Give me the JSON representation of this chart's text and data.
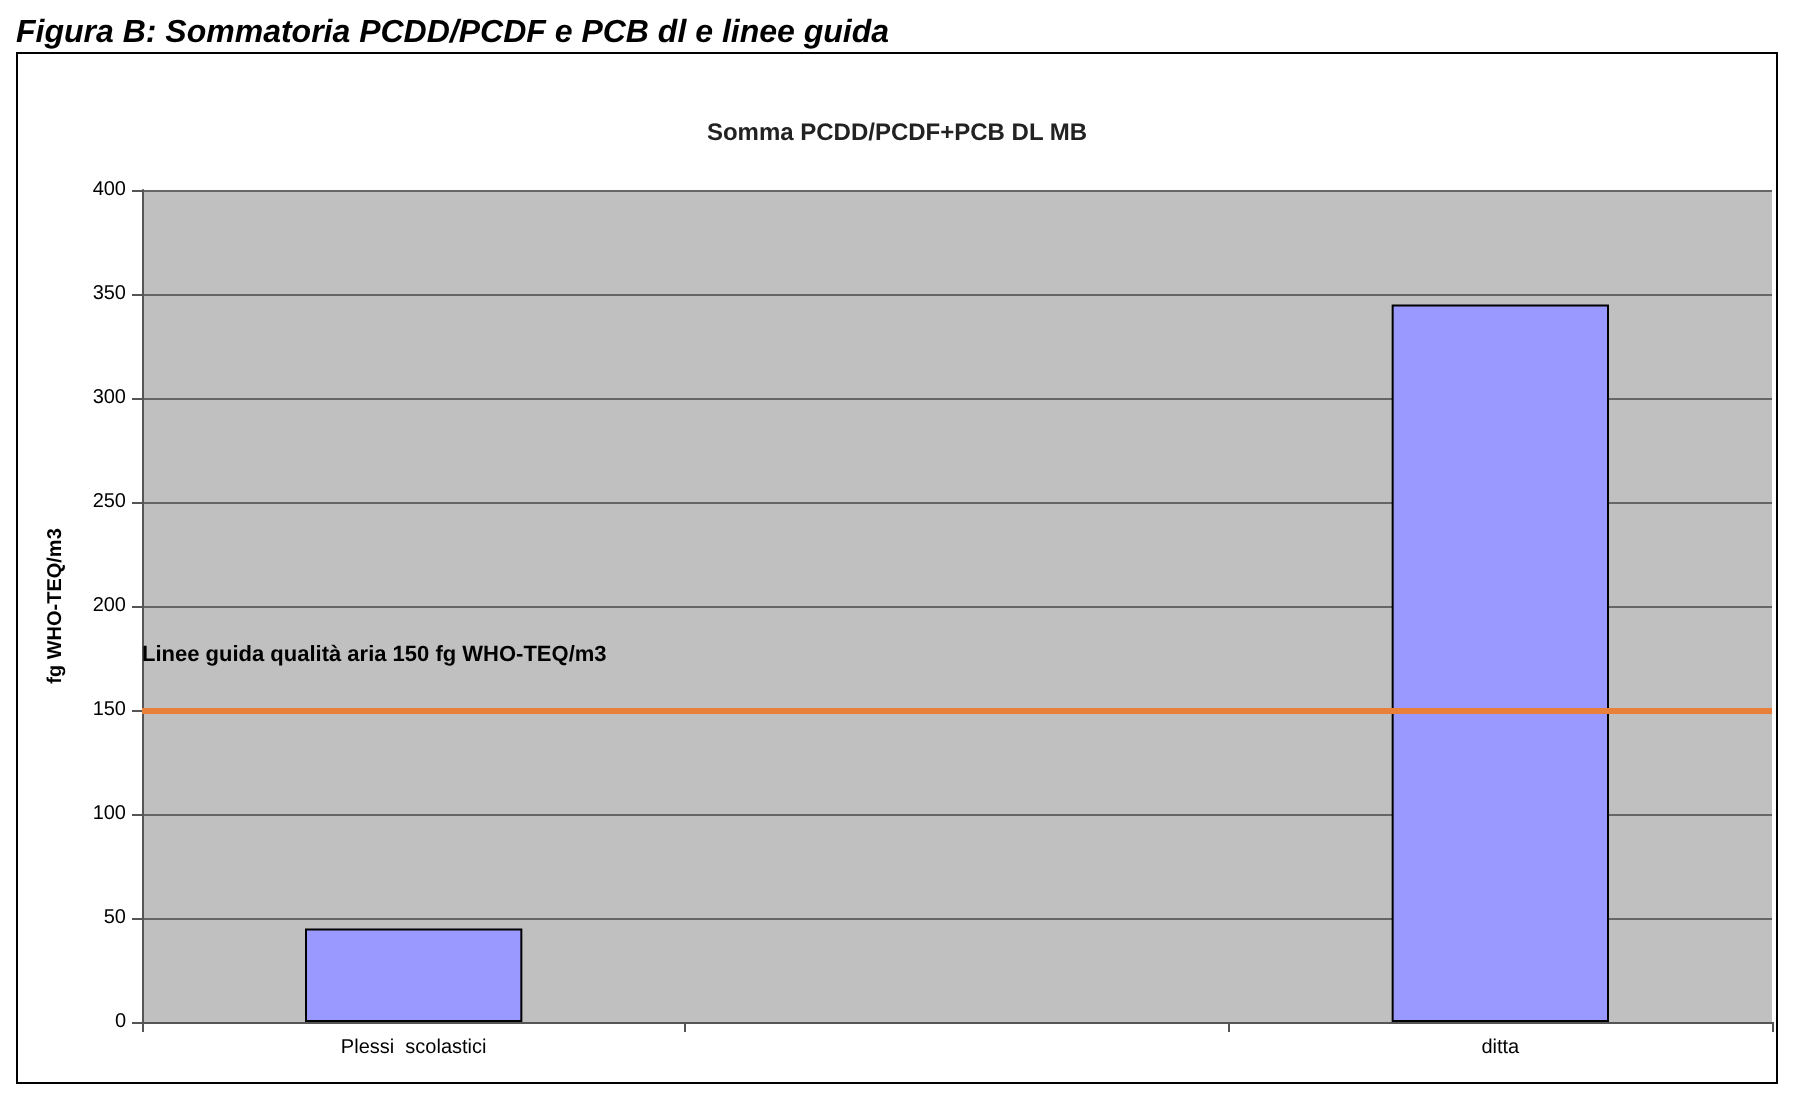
{
  "chart_data": {
    "type": "bar",
    "title": "Somma PCDD/PCDF+PCB DL MB",
    "annotations": [
      "Figura B: Sommatoria PCDD/PCDF e PCB dl e linee guida"
    ],
    "ylabel": "fg WHO-TEQ/m3",
    "categories": [
      "Plessi  scolastici",
      null,
      "ditta"
    ],
    "values": [
      45,
      null,
      345
    ],
    "color": "#9999ff",
    "ylim": [
      0,
      400
    ],
    "yticks": [
      0,
      50,
      100,
      150,
      200,
      250,
      300,
      350,
      400
    ],
    "grid": "y",
    "ref_lines": [
      {
        "axis": "y",
        "value": 150,
        "label": "Linee guida qualità aria 150 fg WHO-TEQ/m3",
        "color": "#e8803a"
      }
    ]
  }
}
